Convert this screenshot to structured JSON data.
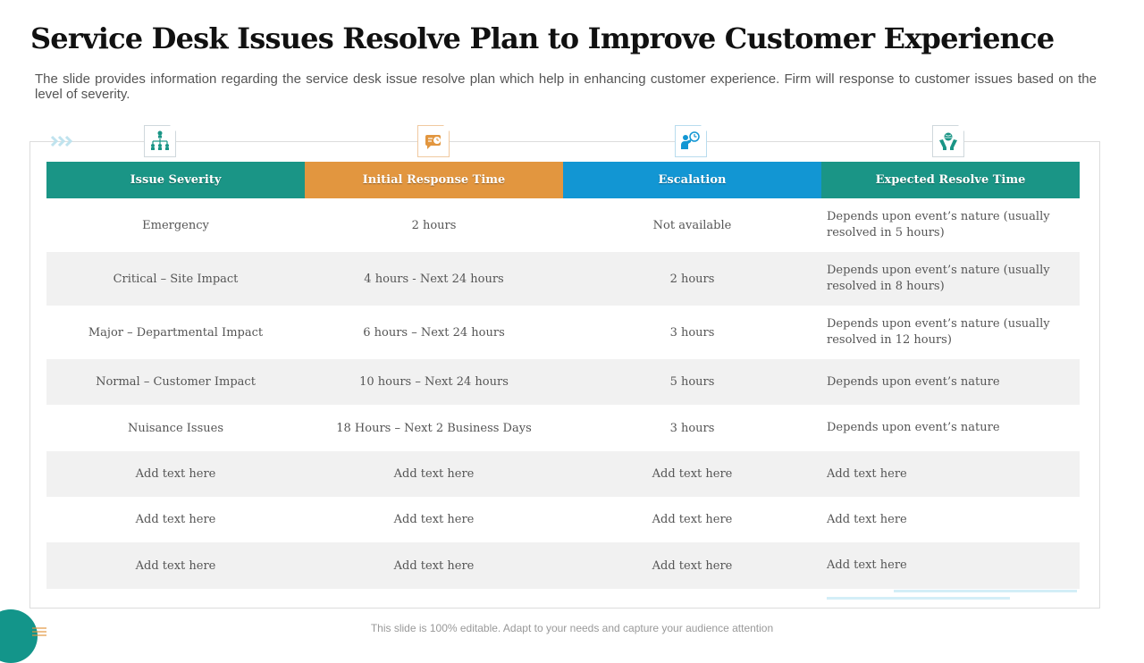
{
  "title": "Service Desk Issues Resolve Plan to Improve Customer Experience",
  "subtitle": "The slide provides information regarding the service desk issue resolve plan which help in enhancing customer experience. Firm will response to customer issues based on the level of severity.",
  "icons": [
    "hierarchy-icon",
    "chat-clock-icon",
    "person-clock-icon",
    "hands-globe-icon"
  ],
  "colors": {
    "teal": "#1a9586",
    "orange": "#e2963f",
    "blue": "#1296d3"
  },
  "table": {
    "headers": [
      "Issue Severity",
      "Initial Response Time",
      "Escalation",
      "Expected Resolve Time"
    ],
    "rows": [
      [
        "Emergency",
        "2 hours",
        "Not available",
        "Depends upon event’s nature (usually resolved in 5 hours)"
      ],
      [
        "Critical – Site Impact",
        "4 hours  - Next 24 hours",
        "2 hours",
        "Depends upon event’s nature (usually resolved in 8 hours)"
      ],
      [
        "Major – Departmental Impact",
        "6 hours – Next 24 hours",
        "3 hours",
        "Depends upon event’s nature (usually resolved in 12 hours)"
      ],
      [
        "Normal – Customer Impact",
        "10 hours – Next 24 hours",
        "5 hours",
        "Depends upon event’s nature"
      ],
      [
        "Nuisance Issues",
        "18 Hours – Next 2 Business Days",
        "3 hours",
        "Depends upon event’s nature"
      ],
      [
        "Add text here",
        "Add text here",
        "Add text here",
        "Add text here"
      ],
      [
        "Add text here",
        "Add text here",
        "Add text here",
        "Add text here"
      ],
      [
        "Add text here",
        "Add text here",
        "Add text here",
        "Add text here"
      ]
    ]
  },
  "footer": "This slide is 100% editable. Adapt to your needs and capture your audience attention"
}
